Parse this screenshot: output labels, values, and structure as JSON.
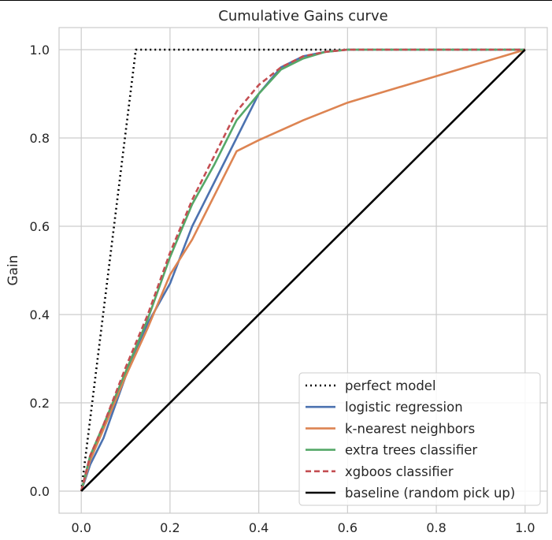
{
  "chart_data": {
    "type": "line",
    "title": "Cumulative Gains curve",
    "xlabel": "",
    "ylabel": "Gain",
    "xlim": [
      -0.05,
      1.05
    ],
    "ylim": [
      -0.05,
      1.05
    ],
    "xticks": [
      "0.0",
      "0.2",
      "0.4",
      "0.6",
      "0.8",
      "1.0"
    ],
    "yticks": [
      "0.0",
      "0.2",
      "0.4",
      "0.6",
      "0.8",
      "1.0"
    ],
    "grid": true,
    "legend_position": "lower-right",
    "series": [
      {
        "name": "perfect model",
        "color": "#000000",
        "style": "dotted",
        "x": [
          0,
          0.123,
          1.0
        ],
        "y": [
          0,
          1.0,
          1.0
        ]
      },
      {
        "name": "logistic regression",
        "color": "#4c72b0",
        "style": "solid",
        "x": [
          0,
          0.02,
          0.05,
          0.1,
          0.15,
          0.2,
          0.25,
          0.3,
          0.35,
          0.4,
          0.45,
          0.5,
          0.55,
          0.6,
          0.7,
          0.8,
          0.9,
          1.0
        ],
        "y": [
          0,
          0.06,
          0.12,
          0.26,
          0.38,
          0.47,
          0.6,
          0.7,
          0.8,
          0.9,
          0.96,
          0.985,
          0.995,
          1.0,
          1.0,
          1.0,
          1.0,
          1.0
        ]
      },
      {
        "name": "k-nearest neighbors",
        "color": "#dd8452",
        "style": "solid",
        "x": [
          0,
          0.02,
          0.05,
          0.1,
          0.15,
          0.2,
          0.25,
          0.3,
          0.35,
          0.4,
          0.5,
          0.6,
          0.7,
          0.8,
          0.9,
          1.0
        ],
        "y": [
          0,
          0.07,
          0.14,
          0.26,
          0.37,
          0.49,
          0.57,
          0.67,
          0.77,
          0.795,
          0.84,
          0.88,
          0.91,
          0.94,
          0.97,
          1.0
        ]
      },
      {
        "name": "extra trees classifier",
        "color": "#55a868",
        "style": "solid",
        "x": [
          0,
          0.02,
          0.05,
          0.1,
          0.15,
          0.2,
          0.25,
          0.3,
          0.35,
          0.4,
          0.45,
          0.5,
          0.55,
          0.6,
          0.7,
          0.8,
          0.9,
          1.0
        ],
        "y": [
          0,
          0.08,
          0.15,
          0.27,
          0.39,
          0.53,
          0.65,
          0.74,
          0.84,
          0.9,
          0.955,
          0.98,
          0.995,
          1.0,
          1.0,
          1.0,
          1.0,
          1.0
        ]
      },
      {
        "name": "xgboos classifier",
        "color": "#c44e52",
        "style": "dashed",
        "x": [
          0,
          0.02,
          0.05,
          0.1,
          0.15,
          0.2,
          0.25,
          0.3,
          0.35,
          0.4,
          0.45,
          0.5,
          0.55,
          0.6,
          0.7,
          0.8,
          0.9,
          1.0
        ],
        "y": [
          0,
          0.08,
          0.15,
          0.28,
          0.4,
          0.54,
          0.66,
          0.76,
          0.86,
          0.92,
          0.96,
          0.985,
          0.995,
          1.0,
          1.0,
          1.0,
          1.0,
          1.0
        ]
      },
      {
        "name": "baseline (random pick up)",
        "color": "#000000",
        "style": "solid",
        "x": [
          0,
          1.0
        ],
        "y": [
          0,
          1.0
        ]
      }
    ]
  }
}
